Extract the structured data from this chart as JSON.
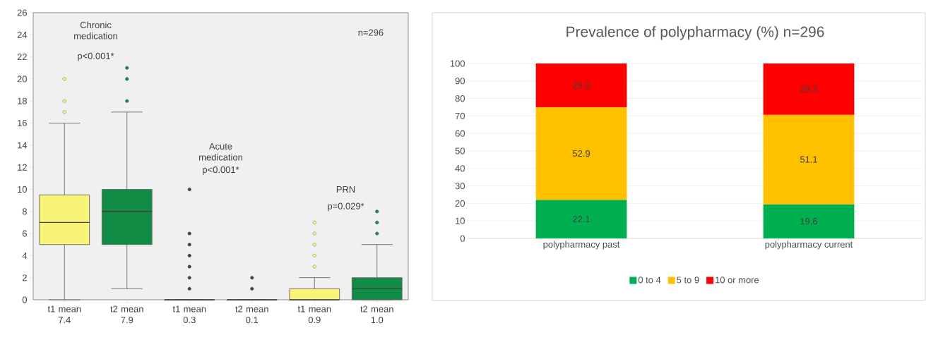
{
  "chart_data": [
    {
      "type": "box",
      "categories": [
        "t1 mean 7.4",
        "t2 mean 7.9",
        "t1 mean 0.3",
        "t2 mean 0.1",
        "t1 mean 0.9",
        "t2 mean 1.0"
      ],
      "colors": [
        "#f8f477",
        "#118c45",
        "#404040",
        "#404040",
        "#f8f477",
        "#118c45"
      ],
      "boxes": [
        {
          "low": 0,
          "q1": 5,
          "median": 7,
          "q3": 9.5,
          "high": 16,
          "outliers": [
            17,
            18,
            20
          ]
        },
        {
          "low": 1,
          "q1": 5,
          "median": 8,
          "q3": 10,
          "high": 17,
          "outliers": [
            18,
            20,
            21
          ]
        },
        {
          "low": 0,
          "q1": 0,
          "median": 0,
          "q3": 0,
          "high": 0,
          "outliers": [
            1,
            2,
            3,
            4,
            5,
            6,
            10
          ]
        },
        {
          "low": 0,
          "q1": 0,
          "median": 0,
          "q3": 0,
          "high": 0,
          "outliers": [
            1,
            2
          ]
        },
        {
          "low": 0,
          "q1": 0,
          "median": 0,
          "q3": 1,
          "high": 2,
          "outliers": [
            3,
            4,
            5,
            6,
            7
          ]
        },
        {
          "low": 0,
          "q1": 0,
          "median": 1,
          "q3": 2,
          "high": 5,
          "outliers": [
            6,
            7,
            8
          ]
        }
      ],
      "ylim": [
        0,
        26
      ],
      "yticks": [
        0,
        2,
        4,
        6,
        8,
        10,
        12,
        14,
        16,
        18,
        20,
        22,
        24,
        26
      ],
      "annotations": [
        "Chronic medication",
        "p<0.001*",
        "Acute medication",
        "p<0.001*",
        "PRN",
        "p=0.029*",
        "n=296"
      ]
    },
    {
      "type": "bar",
      "stacked": true,
      "title": "Prevalence of polypharmacy (%)  n=296",
      "categories": [
        "polypharmacy past",
        "polypharmacy current"
      ],
      "series": [
        {
          "name": "0 to 4",
          "color": "#00b050",
          "values": [
            22.1,
            19.6
          ],
          "value_labels": [
            "22.1",
            "19.6"
          ]
        },
        {
          "name": "5 to 9",
          "color": "#ffc000",
          "values": [
            52.9,
            51.1
          ],
          "value_labels": [
            "52.9",
            "51.1"
          ]
        },
        {
          "name": "10 or more",
          "color": "#ff0000",
          "values": [
            25.0,
            29.3
          ],
          "value_labels": [
            "25.0",
            "29.3"
          ]
        }
      ],
      "ylim": [
        0,
        100
      ],
      "yticks": [
        0,
        10,
        20,
        30,
        40,
        50,
        60,
        70,
        80,
        90,
        100
      ],
      "grid": "y",
      "legend": "bottom"
    }
  ]
}
